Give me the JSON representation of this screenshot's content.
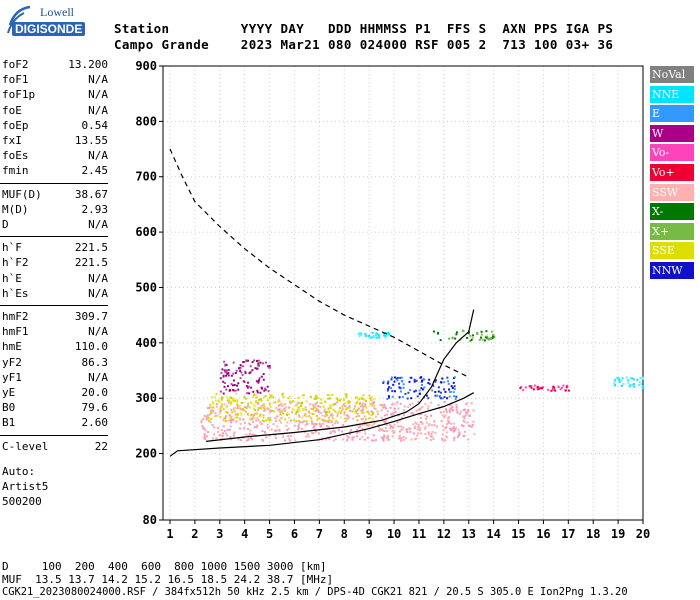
{
  "logo": {
    "brand": "Lowell",
    "product": "DIGISONDE"
  },
  "header": {
    "row1": "Station         YYYY DAY   DDD HHMMSS P1  FFS S  AXN PPS IGA PS",
    "row2": "Campo Grande    2023 Mar21 080 024000 RSF 005 2  713 100 03+ 36"
  },
  "parameters": {
    "group1": [
      {
        "label": "foF2",
        "value": "13.200"
      },
      {
        "label": "foF1",
        "value": "N/A"
      },
      {
        "label": "foF1p",
        "value": "N/A"
      },
      {
        "label": "foE",
        "value": "N/A"
      },
      {
        "label": "foEp",
        "value": "0.54"
      },
      {
        "label": "fxI",
        "value": "13.55"
      },
      {
        "label": "foEs",
        "value": "N/A"
      },
      {
        "label": "fmin",
        "value": "2.45"
      }
    ],
    "group2": [
      {
        "label": "MUF(D)",
        "value": "38.67"
      },
      {
        "label": "M(D)",
        "value": "2.93"
      },
      {
        "label": "D",
        "value": "N/A"
      }
    ],
    "group3": [
      {
        "label": "h`F",
        "value": "221.5"
      },
      {
        "label": "h`F2",
        "value": "221.5"
      },
      {
        "label": "h`E",
        "value": "N/A"
      },
      {
        "label": "h`Es",
        "value": "N/A"
      }
    ],
    "group4": [
      {
        "label": "hmF2",
        "value": "309.7"
      },
      {
        "label": "hmF1",
        "value": "N/A"
      },
      {
        "label": "hmE",
        "value": "110.0"
      },
      {
        "label": "yF2",
        "value": "86.3"
      },
      {
        "label": "yF1",
        "value": "N/A"
      },
      {
        "label": "yE",
        "value": "20.0"
      },
      {
        "label": "B0",
        "value": "79.6"
      },
      {
        "label": "B1",
        "value": "2.60"
      }
    ],
    "group5": [
      {
        "label": "C-level",
        "value": "22"
      }
    ]
  },
  "autoscale": {
    "line1": "Auto:",
    "line2": "Artist5",
    "line3": "500200"
  },
  "legend": [
    {
      "label": "NoVal",
      "bg": "#808080",
      "fg": "#ffffff"
    },
    {
      "label": "NNE",
      "bg": "#00e5ff",
      "fg": "#ffffff"
    },
    {
      "label": "E",
      "bg": "#3399ff",
      "fg": "#ffffff"
    },
    {
      "label": "W",
      "bg": "#aa0088",
      "fg": "#ffffff"
    },
    {
      "label": "Vo-",
      "bg": "#ff44bb",
      "fg": "#ffffff"
    },
    {
      "label": "Vo+",
      "bg": "#ee0033",
      "fg": "#ffffff"
    },
    {
      "label": "SSW",
      "bg": "#ffb0b0",
      "fg": "#ffffff"
    },
    {
      "label": "X-",
      "bg": "#007700",
      "fg": "#ffffff"
    },
    {
      "label": "X+",
      "bg": "#77bb44",
      "fg": "#ffffff"
    },
    {
      "label": "SSE",
      "bg": "#dddd00",
      "fg": "#ffffff"
    },
    {
      "label": "NNW",
      "bg": "#1010cc",
      "fg": "#ffffff"
    }
  ],
  "footer": {
    "d_row": "D     100  200  400  600  800 1000 1500 3000 [km]",
    "muf_row": "MUF  13.5 13.7 14.2 15.2 16.5 18.5 24.2 38.7 [MHz]",
    "file_row": "CGK21_2023080024000.RSF / 384fx512h 50 kHz 2.5 km / DPS-4D CGK21 821 / 20.5 S 305.0 E Ion2Png 1.3.20"
  },
  "chart_data": {
    "type": "scatter",
    "title": "",
    "xlabel": "",
    "ylabel": "",
    "xlim": [
      1,
      20
    ],
    "ylim": [
      80,
      900
    ],
    "x_ticks": [
      1,
      2,
      3,
      4,
      5,
      6,
      7,
      8,
      9,
      10,
      11,
      12,
      13,
      14,
      15,
      16,
      17,
      18,
      19,
      20
    ],
    "y_ticks": [
      80,
      200,
      300,
      400,
      500,
      600,
      700,
      800,
      900
    ],
    "grid": "dotted",
    "series": [
      {
        "kind": "profile",
        "style": "solid",
        "points": [
          [
            1.0,
            195
          ],
          [
            1.3,
            205
          ],
          [
            3,
            210
          ],
          [
            5,
            215
          ],
          [
            7,
            225
          ],
          [
            8,
            235
          ],
          [
            9,
            245
          ],
          [
            10,
            258
          ],
          [
            11,
            272
          ],
          [
            12,
            285
          ],
          [
            12.8,
            300
          ],
          [
            13.2,
            310
          ]
        ]
      },
      {
        "kind": "virtual-height-trace",
        "style": "solid",
        "points": [
          [
            2.45,
            222
          ],
          [
            4,
            230
          ],
          [
            6,
            238
          ],
          [
            8,
            248
          ],
          [
            9.5,
            260
          ],
          [
            10.5,
            275
          ],
          [
            11,
            290
          ],
          [
            11.5,
            320
          ],
          [
            12,
            370
          ],
          [
            12.5,
            400
          ],
          [
            13.0,
            420
          ],
          [
            13.2,
            460
          ]
        ]
      },
      {
        "kind": "upper-boundary",
        "style": "dashed",
        "points": [
          [
            1.0,
            750
          ],
          [
            1.5,
            700
          ],
          [
            2,
            655
          ],
          [
            3,
            610
          ],
          [
            4,
            570
          ],
          [
            5,
            535
          ],
          [
            6,
            505
          ],
          [
            7,
            475
          ],
          [
            8,
            450
          ],
          [
            9,
            430
          ],
          [
            10,
            410
          ],
          [
            11,
            385
          ],
          [
            12,
            360
          ],
          [
            13,
            338
          ]
        ]
      },
      {
        "kind": "echo-regions",
        "points": [
          {
            "x": [
              2.2,
              13.2
            ],
            "y": [
              225,
              295
            ],
            "color": "pink"
          },
          {
            "x": [
              2.5,
              9.2
            ],
            "y": [
              260,
              310
            ],
            "color": "yellow"
          },
          {
            "x": [
              3,
              5
            ],
            "y": [
              310,
              370
            ],
            "color": "purple"
          },
          {
            "x": [
              9.5,
              12.5
            ],
            "y": [
              300,
              340
            ],
            "color": "blue"
          },
          {
            "x": [
              11.5,
              14
            ],
            "y": [
              405,
              425
            ],
            "color": "green"
          },
          {
            "x": [
              8.5,
              9.8
            ],
            "y": [
              410,
              420
            ],
            "color": "cyan"
          },
          {
            "x": [
              15,
              17
            ],
            "y": [
              315,
              325
            ],
            "color": "red"
          },
          {
            "x": [
              18.8,
              20
            ],
            "y": [
              320,
              340
            ],
            "color": "cyan"
          }
        ]
      }
    ]
  }
}
